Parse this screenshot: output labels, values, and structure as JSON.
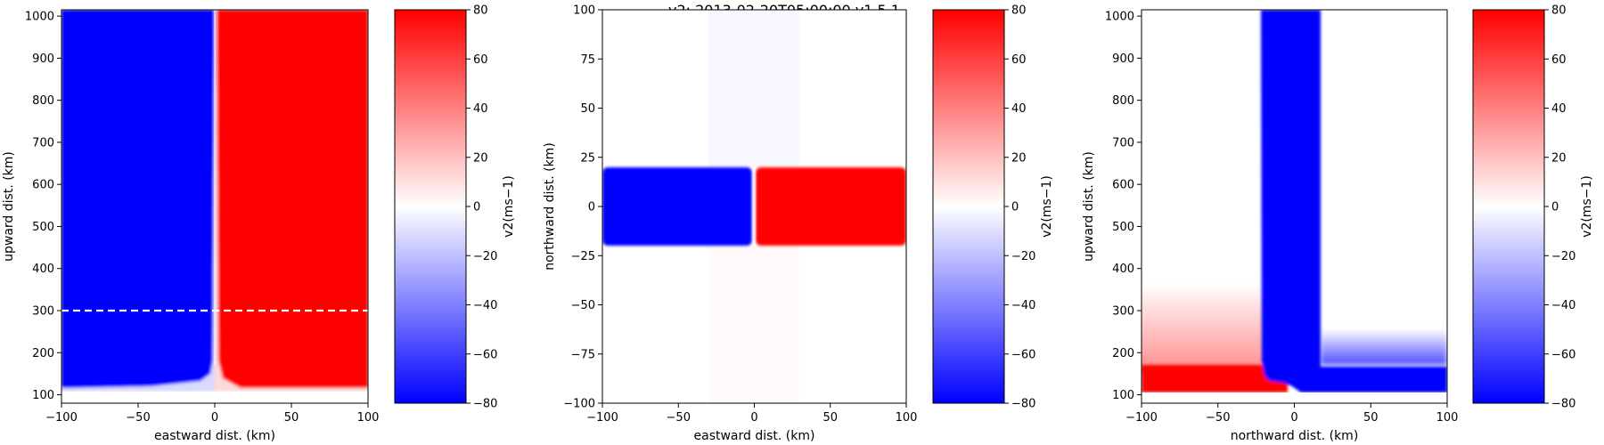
{
  "figure": {
    "title": "v2: 2013-02-20T05:00:00  v1.5.1"
  },
  "colormap": {
    "name": "bwr",
    "low_color": "#0000ff",
    "mid_color": "#ffffff",
    "high_color": "#ff0000"
  },
  "chart_data": [
    {
      "type": "heatmap",
      "panel": "eastward-upward",
      "title": "",
      "xlabel": "eastward dist. (km)",
      "ylabel": "upward dist. (km)",
      "xlim": [
        -100,
        100
      ],
      "ylim": [
        80,
        1015
      ],
      "xticks": [
        -100,
        -50,
        0,
        50,
        100
      ],
      "xtick_labels": [
        "−100",
        "−50",
        "0",
        "50",
        "100"
      ],
      "yticks": [
        100,
        200,
        300,
        400,
        500,
        600,
        700,
        800,
        900,
        1000
      ],
      "ytick_labels": [
        "100",
        "200",
        "300",
        "400",
        "500",
        "600",
        "700",
        "800",
        "900",
        "1000"
      ],
      "field": "v2 = -80 for eastward < 0, +80 for eastward > 0 above ~105 km; weak below",
      "reference_line": {
        "axis": "y",
        "value": 300,
        "style": "dashed",
        "color": "#ffffff"
      },
      "colorbar": {
        "label": "v2(ms−1)",
        "vmin": -80,
        "vmax": 80,
        "ticks": [
          -80,
          -60,
          -40,
          -20,
          0,
          20,
          40,
          60,
          80
        ],
        "tick_labels": [
          "−80",
          "−60",
          "−40",
          "−20",
          "0",
          "20",
          "40",
          "60",
          "80"
        ]
      }
    },
    {
      "type": "heatmap",
      "panel": "eastward-northward",
      "title": "",
      "xlabel": "eastward dist. (km)",
      "ylabel": "northward dist. (km)",
      "xlim": [
        -100,
        100
      ],
      "ylim": [
        -100,
        100
      ],
      "xticks": [
        -100,
        -50,
        0,
        50,
        100
      ],
      "xtick_labels": [
        "−100",
        "−50",
        "0",
        "50",
        "100"
      ],
      "yticks": [
        -100,
        -75,
        -50,
        -25,
        0,
        25,
        50,
        75,
        100
      ],
      "ytick_labels": [
        "−100",
        "−75",
        "−50",
        "−25",
        "0",
        "25",
        "50",
        "75",
        "100"
      ],
      "field": "v2 = -80 for eastward < 0 and +80 for eastward > 0 within northward -20 to 20; ~0 elsewhere",
      "colorbar": {
        "label": "v2(ms−1)",
        "vmin": -80,
        "vmax": 80,
        "ticks": [
          -80,
          -60,
          -40,
          -20,
          0,
          20,
          40,
          60,
          80
        ],
        "tick_labels": [
          "−80",
          "−60",
          "−40",
          "−20",
          "0",
          "20",
          "40",
          "60",
          "80"
        ]
      }
    },
    {
      "type": "heatmap",
      "panel": "northward-upward",
      "title": "",
      "xlabel": "northward dist. (km)",
      "ylabel": "upward dist. (km)",
      "xlim": [
        -100,
        100
      ],
      "ylim": [
        80,
        1015
      ],
      "xticks": [
        -100,
        -50,
        0,
        50,
        100
      ],
      "xtick_labels": [
        "−100",
        "−50",
        "0",
        "50",
        "100"
      ],
      "yticks": [
        100,
        200,
        300,
        400,
        500,
        600,
        700,
        800,
        900,
        1000
      ],
      "ytick_labels": [
        "100",
        "200",
        "300",
        "400",
        "500",
        "600",
        "700",
        "800",
        "900",
        "1000"
      ],
      "field": "v2 = -80 for northward -20 to 20 above ~105 km and across northward > 0 near 100-160 km; +80 for northward < -20 below ~170 km",
      "colorbar": {
        "label": "v2(ms−1)",
        "vmin": -80,
        "vmax": 80,
        "ticks": [
          -80,
          -60,
          -40,
          -20,
          0,
          20,
          40,
          60,
          80
        ],
        "tick_labels": [
          "−80",
          "−60",
          "−40",
          "−20",
          "0",
          "20",
          "40",
          "60",
          "80"
        ]
      }
    }
  ]
}
